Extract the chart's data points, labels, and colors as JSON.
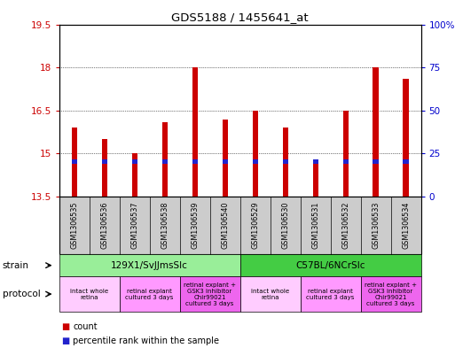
{
  "title": "GDS5188 / 1455641_at",
  "samples": [
    "GSM1306535",
    "GSM1306536",
    "GSM1306537",
    "GSM1306538",
    "GSM1306539",
    "GSM1306540",
    "GSM1306529",
    "GSM1306530",
    "GSM1306531",
    "GSM1306532",
    "GSM1306533",
    "GSM1306534"
  ],
  "count_values": [
    15.9,
    15.5,
    15.0,
    16.1,
    18.0,
    16.2,
    16.5,
    15.9,
    14.8,
    16.5,
    18.0,
    17.6
  ],
  "percentile_values": [
    14.72,
    14.72,
    14.72,
    14.72,
    14.72,
    14.72,
    14.72,
    14.72,
    14.72,
    14.72,
    14.72,
    14.72
  ],
  "bar_bottom": 13.5,
  "ylim_left": [
    13.5,
    19.5
  ],
  "ylim_right": [
    0,
    100
  ],
  "yticks_left": [
    13.5,
    15.0,
    16.5,
    18.0,
    19.5
  ],
  "yticks_right": [
    0,
    25,
    50,
    75,
    100
  ],
  "ytick_labels_left": [
    "13.5",
    "15",
    "16.5",
    "18",
    "19.5"
  ],
  "ytick_labels_right": [
    "0",
    "25",
    "50",
    "75",
    "100%"
  ],
  "bar_color": "#cc0000",
  "percentile_color": "#2222cc",
  "bg_color": "#ffffff",
  "tick_area_color": "#d0d0d0",
  "strain_groups": [
    {
      "label": "129X1/SvJJmsSlc",
      "start": 0,
      "end": 5,
      "color": "#99ee99"
    },
    {
      "label": "C57BL/6NCrSlc",
      "start": 6,
      "end": 11,
      "color": "#44cc44"
    }
  ],
  "protocol_groups": [
    {
      "label": "intact whole\nretina",
      "start": 0,
      "end": 1,
      "color": "#ffccff"
    },
    {
      "label": "retinal explant\ncultured 3 days",
      "start": 2,
      "end": 3,
      "color": "#ff99ff"
    },
    {
      "label": "retinal explant +\nGSK3 inhibitor\nChir99021\ncultured 3 days",
      "start": 4,
      "end": 5,
      "color": "#ee66ee"
    },
    {
      "label": "intact whole\nretina",
      "start": 6,
      "end": 7,
      "color": "#ffccff"
    },
    {
      "label": "retinal explant\ncultured 3 days",
      "start": 8,
      "end": 9,
      "color": "#ff99ff"
    },
    {
      "label": "retinal explant +\nGSK3 inhibitor\nChir99021\ncultured 3 days",
      "start": 10,
      "end": 11,
      "color": "#ee66ee"
    }
  ]
}
